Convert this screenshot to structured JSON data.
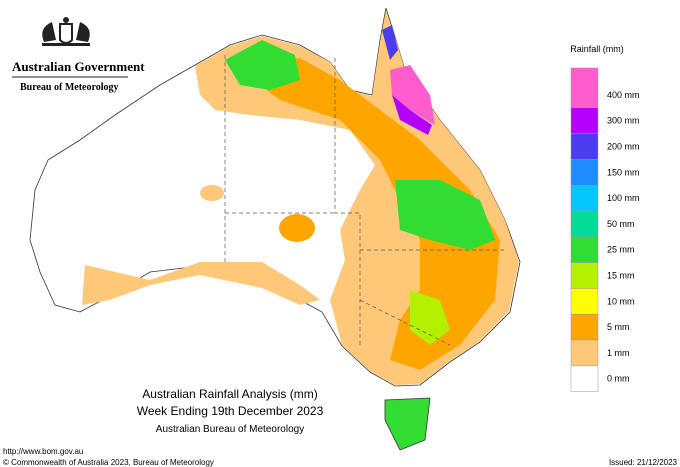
{
  "header": {
    "government": "Australian Government",
    "agency": "Bureau of Meteorology"
  },
  "legend": {
    "title": "Rainfall (mm)",
    "items": [
      {
        "label": "400 mm",
        "color": "#ff5ccd"
      },
      {
        "label": "300 mm",
        "color": "#b400ff"
      },
      {
        "label": "200 mm",
        "color": "#4b3cf0"
      },
      {
        "label": "150 mm",
        "color": "#1e8cff"
      },
      {
        "label": "100 mm",
        "color": "#00c8ff"
      },
      {
        "label": "50 mm",
        "color": "#00dc96"
      },
      {
        "label": "25 mm",
        "color": "#32dc32"
      },
      {
        "label": "15 mm",
        "color": "#b4f000"
      },
      {
        "label": "10 mm",
        "color": "#ffff00"
      },
      {
        "label": "5 mm",
        "color": "#ffa500"
      },
      {
        "label": "1 mm",
        "color": "#ffc878"
      },
      {
        "label": "0 mm",
        "color": "#ffffff"
      }
    ]
  },
  "map_title": {
    "line1": "Australian Rainfall Analysis (mm)",
    "line2": "Week Ending 19th December 2023",
    "line3": "Australian Bureau of Meteorology"
  },
  "footer": {
    "url": "http://www.bom.gov.au",
    "copyright": "© Commonwealth of Australia 2023, Bureau of Meteorology",
    "issued": "Issued: 21/12/2023"
  }
}
